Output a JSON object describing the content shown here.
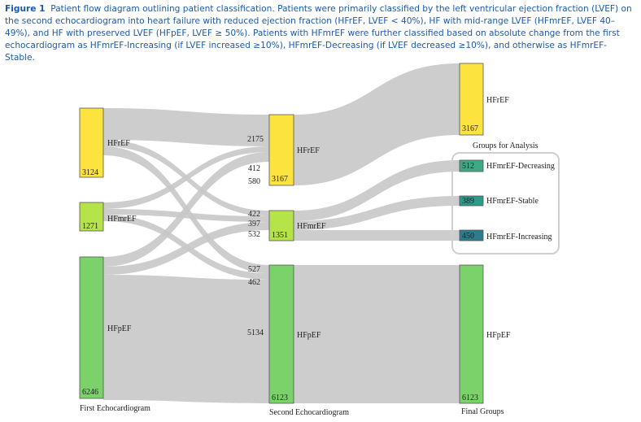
{
  "caption": {
    "label": "Figure 1",
    "text": "Patient flow diagram outlining patient classification. Patients were primarily classified by the left ventricular ejection fraction (LVEF) on the second echocardiogram into heart failure with reduced ejection fraction (HFrEF, LVEF < 40%), HF with mid-range LVEF (HFmrEF, LVEF 40–49%), and HF with preserved LVEF (HFpEF, LVEF ≥ 50%). Patients with HFmrEF were further classified based on absolute change from the first echocardiogram as HFmrEF-Increasing (if LVEF increased ≥10%), HFmrEF-Decreasing (if LVEF decreased ≥10%), and otherwise as HFmrEF-Stable."
  },
  "stages": {
    "first": "First Echocardiogram",
    "second": "Second Echocardiogram",
    "final": "Final Groups",
    "analysis": "Groups for Analysis"
  },
  "colors": {
    "hfref": "#fde33e",
    "hfmref": "#b5e34a",
    "hfpef": "#7cd26a",
    "decreasing": "#3daa86",
    "stable": "#2e9a8e",
    "increasing": "#2b7c8c",
    "link": "#c8c8c8"
  },
  "nodes": {
    "first": [
      {
        "label": "HFrEF",
        "count": "3124"
      },
      {
        "label": "HFmrEF",
        "count": "1271"
      },
      {
        "label": "HFpEF",
        "count": "6246"
      }
    ],
    "second": [
      {
        "label": "HFrEF",
        "count": "3167"
      },
      {
        "label": "HFmrEF",
        "count": "1351"
      },
      {
        "label": "HFpEF",
        "count": "6123"
      }
    ],
    "final": [
      {
        "label": "HFrEF",
        "count": "3167"
      },
      {
        "label": "HFmrEF-Decreasing",
        "count": "512"
      },
      {
        "label": "HFmrEF-Stable",
        "count": "389"
      },
      {
        "label": "HFmrEF-Increasing",
        "count": "450"
      },
      {
        "label": "HFpEF",
        "count": "6123"
      }
    ]
  },
  "flows": {
    "to_hfref": [
      "2175",
      "412",
      "580"
    ],
    "to_hfmref": [
      "422",
      "397",
      "532"
    ],
    "to_hfpef": [
      "527",
      "462",
      "5134"
    ]
  }
}
